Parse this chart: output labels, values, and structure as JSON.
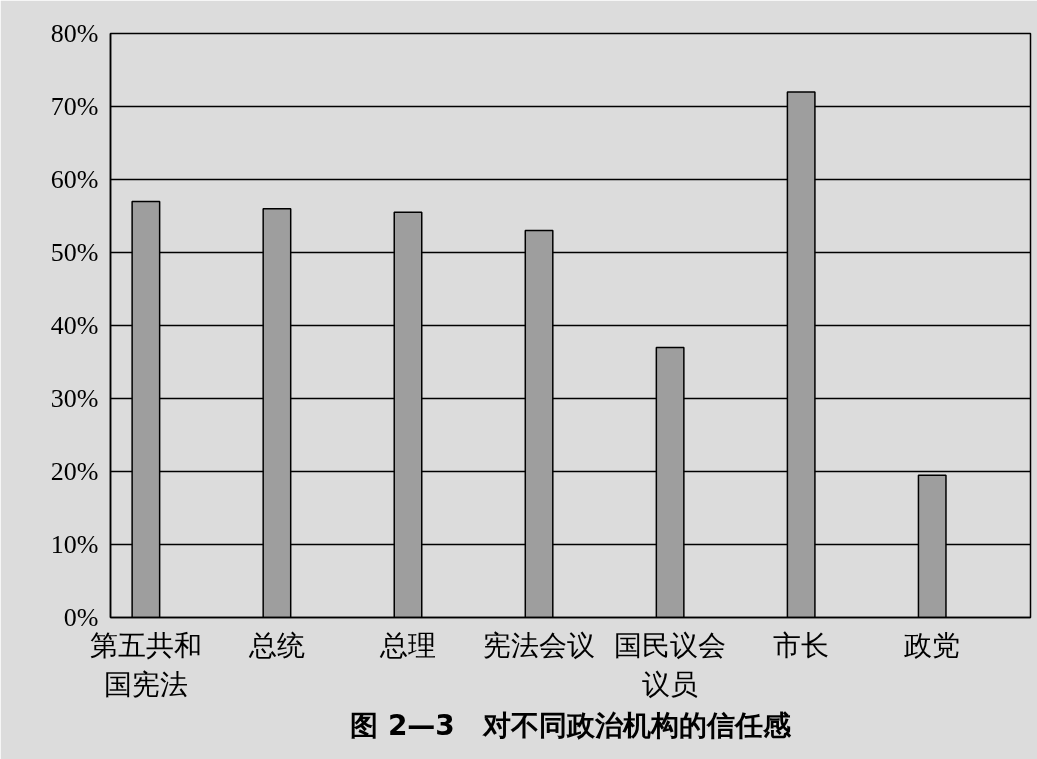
{
  "chart_data": {
    "type": "bar",
    "title": "图 2—3　对不同政治机构的信任感",
    "categories": [
      "第五共和国宪法",
      "总统",
      "总理",
      "宪法会议",
      "国民议会议员",
      "市长",
      "政党"
    ],
    "values": [
      57,
      56,
      55.5,
      53,
      37,
      72,
      19.5
    ],
    "color": "#9e9e9e",
    "ylim": [
      0,
      80
    ],
    "yticks": [
      {
        "value": 0,
        "label": "0%"
      },
      {
        "value": 10,
        "label": "10%"
      },
      {
        "value": 20,
        "label": "20%"
      },
      {
        "value": 30,
        "label": "30%"
      },
      {
        "value": 40,
        "label": "40%"
      },
      {
        "value": 50,
        "label": "50%"
      },
      {
        "value": 60,
        "label": "60%"
      },
      {
        "value": 70,
        "label": "70%"
      },
      {
        "value": 80,
        "label": "80%"
      }
    ],
    "grid": "y"
  }
}
